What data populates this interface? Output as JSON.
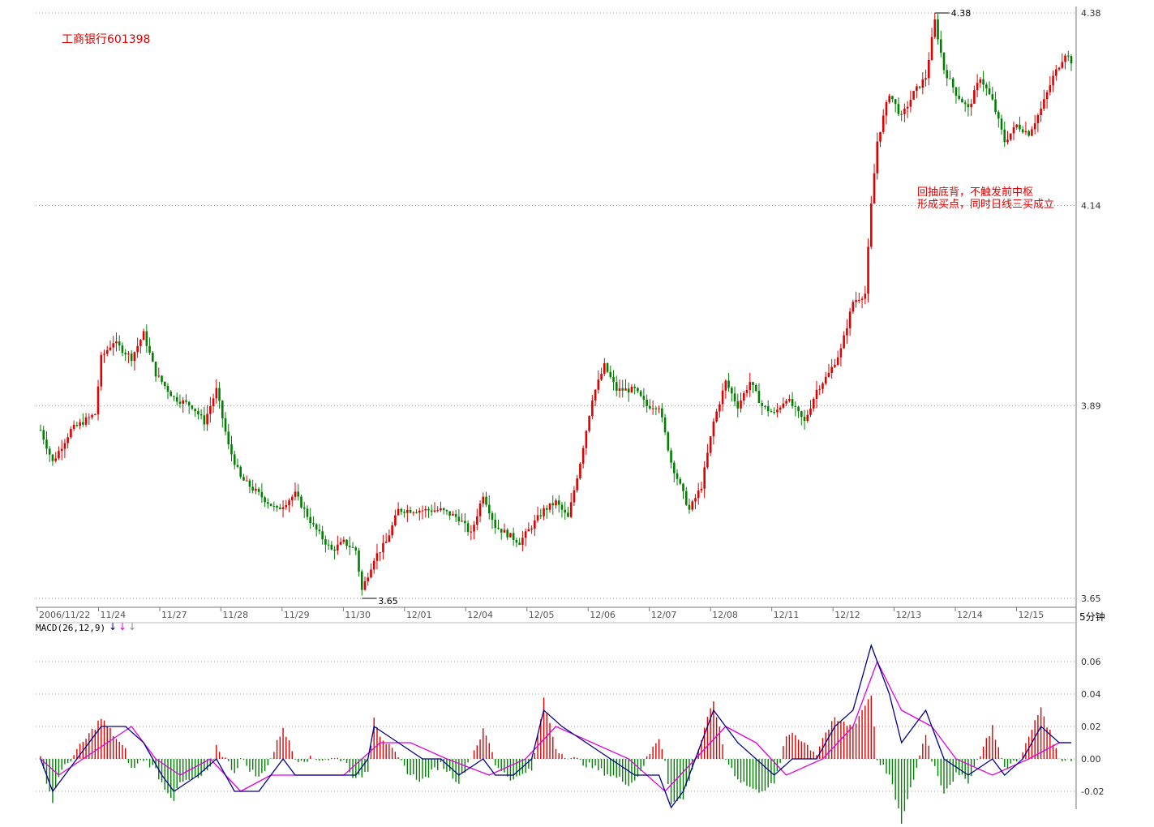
{
  "header": {
    "stock_name": "工商银行601398",
    "period": "5分钟"
  },
  "annotation": {
    "line1": "回抽底背，不触发前中枢",
    "line2": "形成买点，同时日线三买成立"
  },
  "colors": {
    "up": "#e00000",
    "down": "#008000",
    "dif": "#00008b",
    "dea": "#e000e0",
    "grid": "#999999"
  },
  "chart_data": [
    {
      "type": "candlestick",
      "title": "工商银行601398",
      "x_ticks": [
        "2006/11/22",
        "11/24",
        "11/27",
        "11/28",
        "11/29",
        "11/30",
        "12/01",
        "12/04",
        "12/05",
        "12/06",
        "12/07",
        "12/08",
        "12/11",
        "12/12",
        "12/13",
        "12/14",
        "12/15"
      ],
      "y_ticks": [
        "4.38",
        "4.14",
        "3.89",
        "3.65"
      ],
      "ylim": [
        3.65,
        4.38
      ],
      "grid": true,
      "high_marker": "4.38",
      "low_marker": "3.65",
      "close_path": [
        [
          0,
          3.86
        ],
        [
          4,
          3.82
        ],
        [
          10,
          3.86
        ],
        [
          18,
          3.88
        ],
        [
          20,
          3.95
        ],
        [
          24,
          3.97
        ],
        [
          30,
          3.95
        ],
        [
          34,
          3.98
        ],
        [
          38,
          3.93
        ],
        [
          44,
          3.9
        ],
        [
          50,
          3.89
        ],
        [
          54,
          3.87
        ],
        [
          58,
          3.91
        ],
        [
          62,
          3.84
        ],
        [
          66,
          3.8
        ],
        [
          72,
          3.78
        ],
        [
          78,
          3.76
        ],
        [
          84,
          3.78
        ],
        [
          90,
          3.74
        ],
        [
          96,
          3.71
        ],
        [
          100,
          3.72
        ],
        [
          104,
          3.71
        ],
        [
          106,
          3.66
        ],
        [
          110,
          3.7
        ],
        [
          114,
          3.72
        ],
        [
          118,
          3.76
        ],
        [
          126,
          3.76
        ],
        [
          132,
          3.76
        ],
        [
          138,
          3.75
        ],
        [
          142,
          3.73
        ],
        [
          146,
          3.78
        ],
        [
          150,
          3.74
        ],
        [
          154,
          3.73
        ],
        [
          158,
          3.72
        ],
        [
          162,
          3.74
        ],
        [
          166,
          3.76
        ],
        [
          170,
          3.77
        ],
        [
          174,
          3.75
        ],
        [
          178,
          3.82
        ],
        [
          182,
          3.9
        ],
        [
          186,
          3.94
        ],
        [
          190,
          3.91
        ],
        [
          196,
          3.91
        ],
        [
          200,
          3.89
        ],
        [
          204,
          3.89
        ],
        [
          208,
          3.82
        ],
        [
          212,
          3.78
        ],
        [
          214,
          3.76
        ],
        [
          218,
          3.79
        ],
        [
          222,
          3.87
        ],
        [
          226,
          3.92
        ],
        [
          230,
          3.89
        ],
        [
          234,
          3.92
        ],
        [
          238,
          3.89
        ],
        [
          242,
          3.88
        ],
        [
          246,
          3.9
        ],
        [
          250,
          3.88
        ],
        [
          252,
          3.87
        ],
        [
          256,
          3.91
        ],
        [
          260,
          3.93
        ],
        [
          264,
          3.96
        ],
        [
          268,
          4.02
        ],
        [
          272,
          4.03
        ],
        [
          274,
          4.14
        ],
        [
          276,
          4.22
        ],
        [
          280,
          4.28
        ],
        [
          284,
          4.25
        ],
        [
          288,
          4.28
        ],
        [
          292,
          4.3
        ],
        [
          295,
          4.37
        ],
        [
          298,
          4.31
        ],
        [
          302,
          4.28
        ],
        [
          306,
          4.26
        ],
        [
          310,
          4.3
        ],
        [
          314,
          4.27
        ],
        [
          318,
          4.22
        ],
        [
          322,
          4.24
        ],
        [
          326,
          4.23
        ],
        [
          330,
          4.26
        ],
        [
          334,
          4.3
        ],
        [
          338,
          4.33
        ],
        [
          340,
          4.32
        ]
      ]
    },
    {
      "type": "bar+line",
      "title": "MACD(26,12,9)",
      "y_ticks": [
        "0.06",
        "0.04",
        "0.02",
        "0.00",
        "-0.02"
      ],
      "ylim": [
        -0.03,
        0.07
      ],
      "grid": true,
      "series": [
        {
          "name": "DIF",
          "points": [
            [
              0,
              0.0
            ],
            [
              4,
              -0.02
            ],
            [
              12,
              0.0
            ],
            [
              20,
              0.02
            ],
            [
              28,
              0.02
            ],
            [
              34,
              0.01
            ],
            [
              40,
              -0.01
            ],
            [
              44,
              -0.02
            ],
            [
              52,
              -0.01
            ],
            [
              58,
              0.0
            ],
            [
              64,
              -0.02
            ],
            [
              72,
              -0.02
            ],
            [
              80,
              0.0
            ],
            [
              84,
              -0.01
            ],
            [
              88,
              -0.01
            ],
            [
              96,
              -0.01
            ],
            [
              104,
              -0.01
            ],
            [
              108,
              0.0
            ],
            [
              110,
              0.02
            ],
            [
              118,
              0.01
            ],
            [
              126,
              0.0
            ],
            [
              132,
              0.0
            ],
            [
              138,
              -0.01
            ],
            [
              146,
              0.0
            ],
            [
              150,
              -0.01
            ],
            [
              156,
              -0.01
            ],
            [
              162,
              0.0
            ],
            [
              166,
              0.03
            ],
            [
              172,
              0.02
            ],
            [
              180,
              0.01
            ],
            [
              188,
              0.0
            ],
            [
              196,
              -0.01
            ],
            [
              200,
              -0.01
            ],
            [
              204,
              -0.01
            ],
            [
              208,
              -0.03
            ],
            [
              212,
              -0.02
            ],
            [
              218,
              0.01
            ],
            [
              222,
              0.03
            ],
            [
              230,
              0.01
            ],
            [
              236,
              0.0
            ],
            [
              242,
              -0.01
            ],
            [
              248,
              0.0
            ],
            [
              256,
              0.0
            ],
            [
              262,
              0.02
            ],
            [
              268,
              0.03
            ],
            [
              274,
              0.07
            ],
            [
              280,
              0.04
            ],
            [
              284,
              0.01
            ],
            [
              292,
              0.03
            ],
            [
              298,
              0.0
            ],
            [
              306,
              -0.01
            ],
            [
              314,
              0.0
            ],
            [
              318,
              -0.01
            ],
            [
              324,
              0.0
            ],
            [
              330,
              0.02
            ],
            [
              336,
              0.01
            ],
            [
              340,
              0.01
            ]
          ]
        },
        {
          "name": "DEA",
          "points": [
            [
              0,
              0.0
            ],
            [
              6,
              -0.01
            ],
            [
              14,
              0.0
            ],
            [
              22,
              0.01
            ],
            [
              30,
              0.02
            ],
            [
              38,
              0.0
            ],
            [
              46,
              -0.01
            ],
            [
              56,
              0.0
            ],
            [
              66,
              -0.02
            ],
            [
              76,
              -0.01
            ],
            [
              86,
              -0.01
            ],
            [
              100,
              -0.01
            ],
            [
              112,
              0.01
            ],
            [
              122,
              0.01
            ],
            [
              134,
              0.0
            ],
            [
              148,
              -0.01
            ],
            [
              160,
              0.0
            ],
            [
              170,
              0.02
            ],
            [
              182,
              0.01
            ],
            [
              194,
              0.0
            ],
            [
              206,
              -0.02
            ],
            [
              216,
              0.0
            ],
            [
              226,
              0.02
            ],
            [
              236,
              0.01
            ],
            [
              246,
              -0.01
            ],
            [
              258,
              0.0
            ],
            [
              268,
              0.02
            ],
            [
              276,
              0.06
            ],
            [
              284,
              0.03
            ],
            [
              294,
              0.02
            ],
            [
              302,
              0.0
            ],
            [
              314,
              -0.01
            ],
            [
              326,
              0.0
            ],
            [
              336,
              0.01
            ],
            [
              340,
              0.01
            ]
          ]
        }
      ]
    }
  ]
}
